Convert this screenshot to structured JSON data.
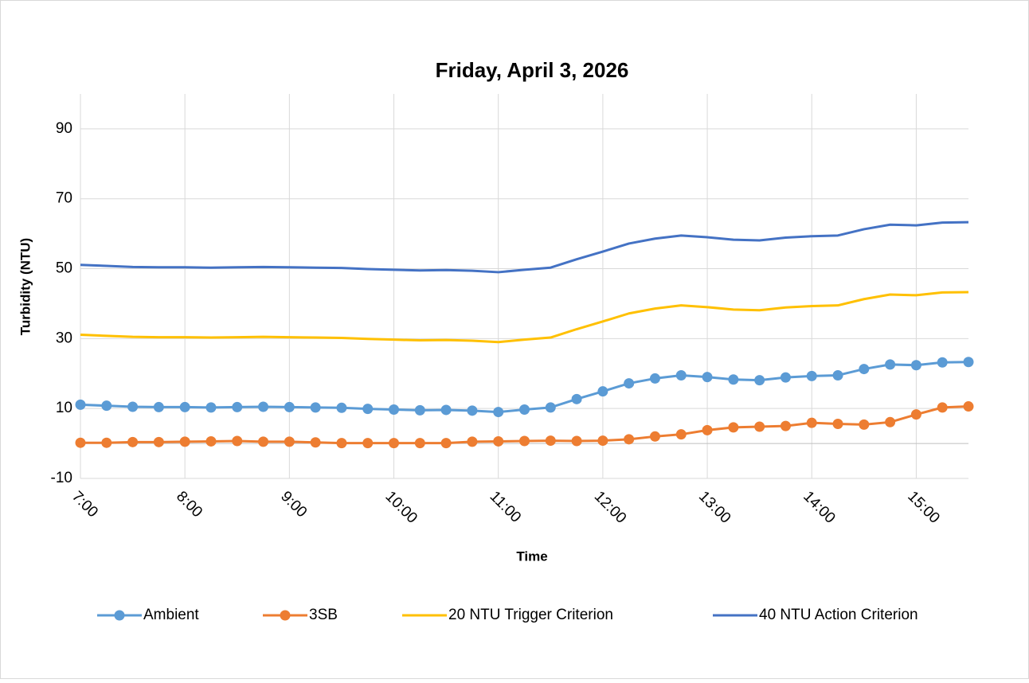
{
  "chart_data": {
    "type": "line",
    "title": "Friday, April 3, 2026",
    "x_label": "Time",
    "y_label": "Turbidity (NTU)",
    "x": [
      7,
      7.25,
      7.5,
      7.75,
      8,
      8.25,
      8.5,
      8.75,
      9,
      9.25,
      9.5,
      9.75,
      10,
      10.25,
      10.5,
      10.75,
      11,
      11.25,
      11.5,
      11.75,
      12,
      12.25,
      12.5,
      12.75,
      13,
      13.25,
      13.5,
      13.75,
      14,
      14.25,
      14.5,
      14.75,
      15,
      15.25,
      15.5
    ],
    "xlim": [
      7,
      15.5
    ],
    "xticks": [
      {
        "value": 7,
        "label": "7:00"
      },
      {
        "value": 8,
        "label": "8:00"
      },
      {
        "value": 9,
        "label": "9:00"
      },
      {
        "value": 10,
        "label": "10:00"
      },
      {
        "value": 11,
        "label": "11:00"
      },
      {
        "value": 12,
        "label": "12:00"
      },
      {
        "value": 13,
        "label": "13:00"
      },
      {
        "value": 14,
        "label": "14:00"
      },
      {
        "value": 15,
        "label": "15:00"
      }
    ],
    "ylim": [
      -10,
      100
    ],
    "yticks": [
      -10,
      10,
      30,
      50,
      70,
      90
    ],
    "grid": true,
    "legend": "bottom",
    "series": [
      {
        "name": "Ambient",
        "color": "#5b9bd5",
        "marker": true,
        "values": [
          11.1,
          10.8,
          10.5,
          10.4,
          10.4,
          10.3,
          10.4,
          10.5,
          10.4,
          10.3,
          10.2,
          9.9,
          9.7,
          9.5,
          9.6,
          9.4,
          9.0,
          9.7,
          10.3,
          12.7,
          14.9,
          17.2,
          18.6,
          19.5,
          19.0,
          18.3,
          18.1,
          18.9,
          19.3,
          19.5,
          21.3,
          22.6,
          22.4,
          23.2,
          23.3
        ]
      },
      {
        "name": "3SB",
        "color": "#ed7d31",
        "marker": true,
        "values": [
          0.2,
          0.2,
          0.4,
          0.4,
          0.5,
          0.6,
          0.7,
          0.5,
          0.5,
          0.3,
          0.1,
          0.1,
          0.1,
          0.1,
          0.1,
          0.5,
          0.6,
          0.7,
          0.8,
          0.7,
          0.8,
          1.2,
          2.0,
          2.6,
          3.8,
          4.6,
          4.8,
          5.0,
          5.9,
          5.6,
          5.4,
          6.1,
          8.3,
          10.3,
          10.6
        ]
      },
      {
        "name": "20 NTU Trigger Criterion",
        "color": "#ffc000",
        "marker": false,
        "values": [
          31.1,
          30.8,
          30.5,
          30.4,
          30.4,
          30.3,
          30.4,
          30.5,
          30.4,
          30.3,
          30.2,
          29.9,
          29.7,
          29.5,
          29.6,
          29.4,
          29.0,
          29.7,
          30.3,
          32.7,
          34.9,
          37.2,
          38.6,
          39.5,
          39.0,
          38.3,
          38.1,
          38.9,
          39.3,
          39.5,
          41.3,
          42.6,
          42.4,
          43.2,
          43.3
        ]
      },
      {
        "name": "40 NTU Action Criterion",
        "color": "#4472c4",
        "marker": false,
        "values": [
          51.1,
          50.8,
          50.5,
          50.4,
          50.4,
          50.3,
          50.4,
          50.5,
          50.4,
          50.3,
          50.2,
          49.9,
          49.7,
          49.5,
          49.6,
          49.4,
          49.0,
          49.7,
          50.3,
          52.7,
          54.9,
          57.2,
          58.6,
          59.5,
          59.0,
          58.3,
          58.1,
          58.9,
          59.3,
          59.5,
          61.3,
          62.6,
          62.4,
          63.2,
          63.3
        ]
      }
    ]
  }
}
